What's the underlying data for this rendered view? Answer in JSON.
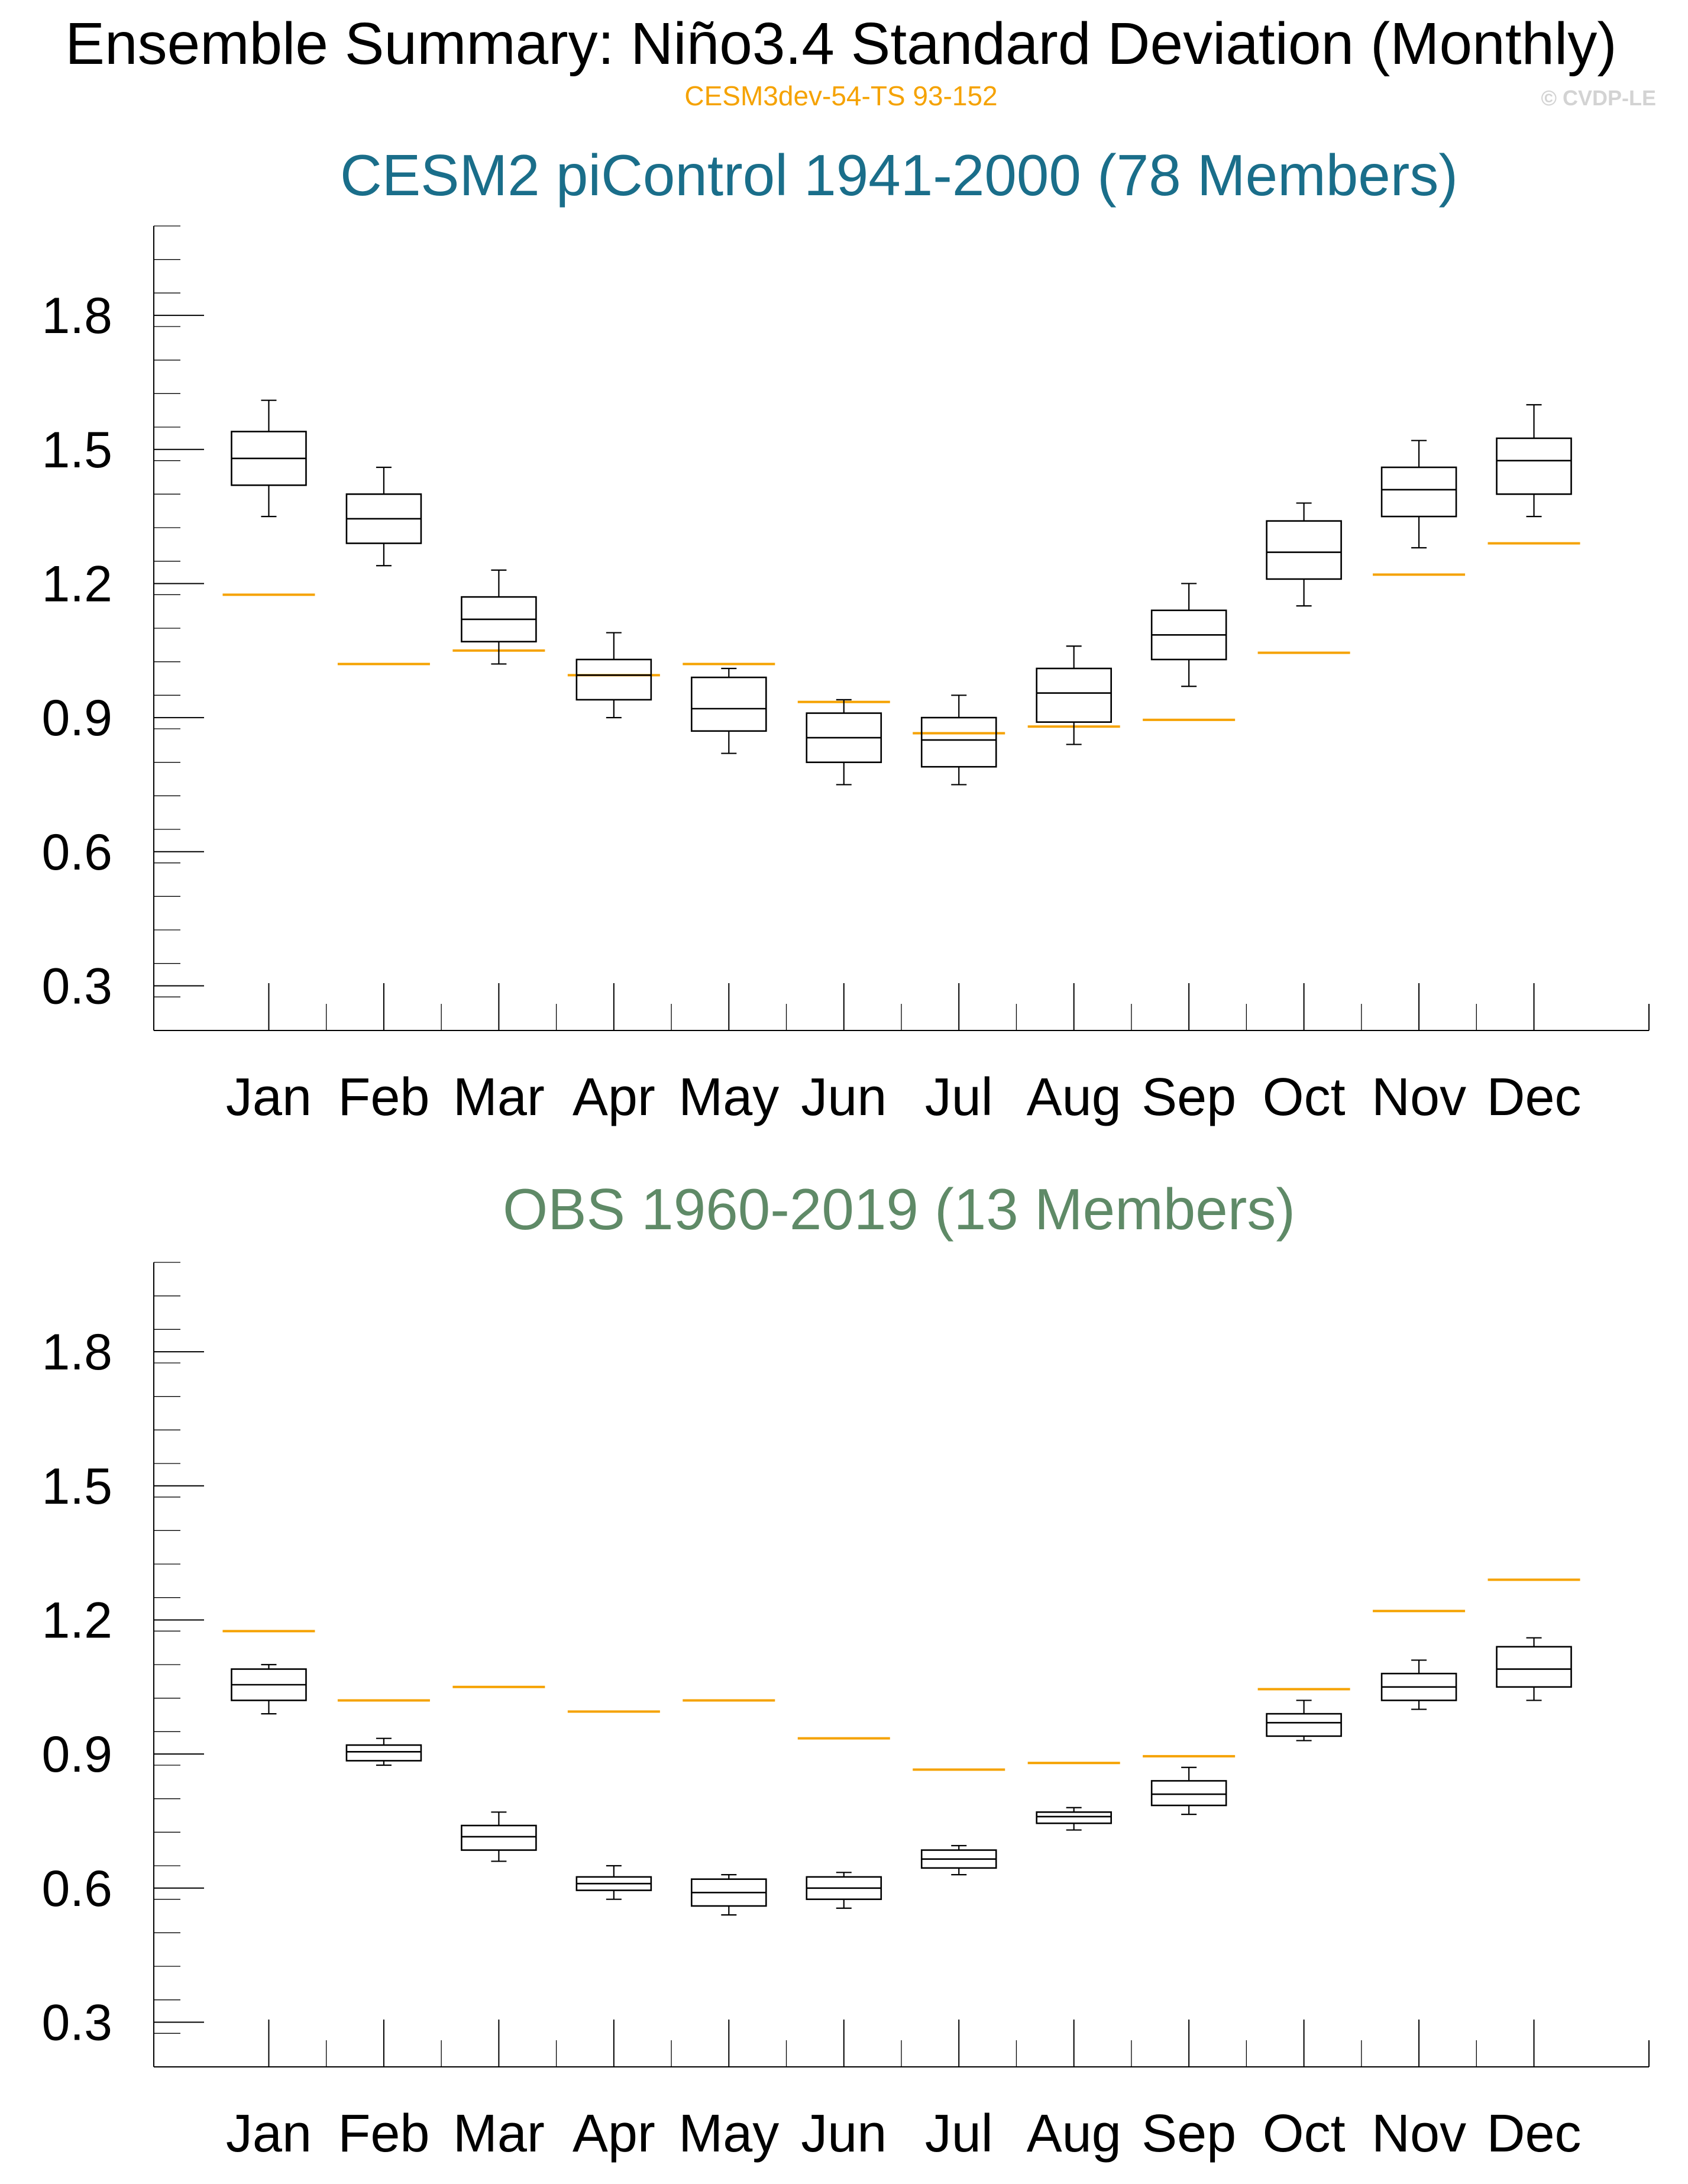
{
  "header": {
    "title": "Ensemble Summary: Niño3.4 Standard Deviation (Monthly)",
    "subtitle": "CESM3dev-54-TS 93-152",
    "copyright": "© CVDP-LE"
  },
  "colors": {
    "reference": "#f5a200",
    "panel1_title": "#1a6e8a",
    "panel2_title": "#5f8a67",
    "box": "#000000",
    "copyright": "#d3d3d3"
  },
  "chart_data": [
    {
      "type": "box",
      "title": "CESM2 piControl 1941-2000 (78 Members)",
      "xlabel": "",
      "ylabel": "",
      "categories": [
        "Jan",
        "Feb",
        "Mar",
        "Apr",
        "May",
        "Jun",
        "Jul",
        "Aug",
        "Sep",
        "Oct",
        "Nov",
        "Dec"
      ],
      "ylim": [
        0.2,
        2.0
      ],
      "yticks": [
        0.3,
        0.6,
        0.9,
        1.2,
        1.5,
        1.8
      ],
      "ytick_labels": [
        "0.3",
        "0.6",
        "0.9",
        "1.2",
        "1.5",
        "1.8"
      ],
      "grid": false,
      "boxes": [
        {
          "min": 1.35,
          "q1": 1.42,
          "median": 1.48,
          "q3": 1.54,
          "max": 1.61
        },
        {
          "min": 1.24,
          "q1": 1.29,
          "median": 1.345,
          "q3": 1.4,
          "max": 1.46
        },
        {
          "min": 1.02,
          "q1": 1.07,
          "median": 1.12,
          "q3": 1.17,
          "max": 1.23
        },
        {
          "min": 0.9,
          "q1": 0.94,
          "median": 0.995,
          "q3": 1.03,
          "max": 1.09
        },
        {
          "min": 0.82,
          "q1": 0.87,
          "median": 0.92,
          "q3": 0.99,
          "max": 1.01
        },
        {
          "min": 0.75,
          "q1": 0.8,
          "median": 0.855,
          "q3": 0.91,
          "max": 0.94
        },
        {
          "min": 0.75,
          "q1": 0.79,
          "median": 0.85,
          "q3": 0.9,
          "max": 0.95
        },
        {
          "min": 0.84,
          "q1": 0.89,
          "median": 0.955,
          "q3": 1.01,
          "max": 1.06
        },
        {
          "min": 0.97,
          "q1": 1.03,
          "median": 1.085,
          "q3": 1.14,
          "max": 1.2
        },
        {
          "min": 1.15,
          "q1": 1.21,
          "median": 1.27,
          "q3": 1.34,
          "max": 1.38
        },
        {
          "min": 1.28,
          "q1": 1.35,
          "median": 1.41,
          "q3": 1.46,
          "max": 1.52
        },
        {
          "min": 1.35,
          "q1": 1.4,
          "median": 1.475,
          "q3": 1.525,
          "max": 1.6
        }
      ],
      "reference": [
        1.175,
        1.02,
        1.05,
        0.995,
        1.02,
        0.935,
        0.865,
        0.88,
        0.895,
        1.045,
        1.22,
        1.29
      ]
    },
    {
      "type": "box",
      "title": "OBS 1960-2019 (13 Members)",
      "xlabel": "",
      "ylabel": "",
      "categories": [
        "Jan",
        "Feb",
        "Mar",
        "Apr",
        "May",
        "Jun",
        "Jul",
        "Aug",
        "Sep",
        "Oct",
        "Nov",
        "Dec"
      ],
      "ylim": [
        0.2,
        2.0
      ],
      "yticks": [
        0.3,
        0.6,
        0.9,
        1.2,
        1.5,
        1.8
      ],
      "ytick_labels": [
        "0.3",
        "0.6",
        "0.9",
        "1.2",
        "1.5",
        "1.8"
      ],
      "grid": false,
      "boxes": [
        {
          "min": 0.99,
          "q1": 1.02,
          "median": 1.055,
          "q3": 1.09,
          "max": 1.1
        },
        {
          "min": 0.875,
          "q1": 0.885,
          "median": 0.905,
          "q3": 0.92,
          "max": 0.935
        },
        {
          "min": 0.66,
          "q1": 0.685,
          "median": 0.715,
          "q3": 0.74,
          "max": 0.77
        },
        {
          "min": 0.575,
          "q1": 0.595,
          "median": 0.61,
          "q3": 0.625,
          "max": 0.65
        },
        {
          "min": 0.54,
          "q1": 0.56,
          "median": 0.59,
          "q3": 0.62,
          "max": 0.63
        },
        {
          "min": 0.555,
          "q1": 0.575,
          "median": 0.6,
          "q3": 0.625,
          "max": 0.635
        },
        {
          "min": 0.63,
          "q1": 0.645,
          "median": 0.665,
          "q3": 0.685,
          "max": 0.695
        },
        {
          "min": 0.73,
          "q1": 0.745,
          "median": 0.76,
          "q3": 0.77,
          "max": 0.78
        },
        {
          "min": 0.765,
          "q1": 0.785,
          "median": 0.81,
          "q3": 0.84,
          "max": 0.87
        },
        {
          "min": 0.93,
          "q1": 0.94,
          "median": 0.97,
          "q3": 0.99,
          "max": 1.02
        },
        {
          "min": 1.0,
          "q1": 1.02,
          "median": 1.05,
          "q3": 1.08,
          "max": 1.11
        },
        {
          "min": 1.02,
          "q1": 1.05,
          "median": 1.09,
          "q3": 1.14,
          "max": 1.16
        }
      ],
      "reference": [
        1.175,
        1.02,
        1.05,
        0.995,
        1.02,
        0.935,
        0.865,
        0.88,
        0.895,
        1.045,
        1.22,
        1.29
      ]
    }
  ]
}
